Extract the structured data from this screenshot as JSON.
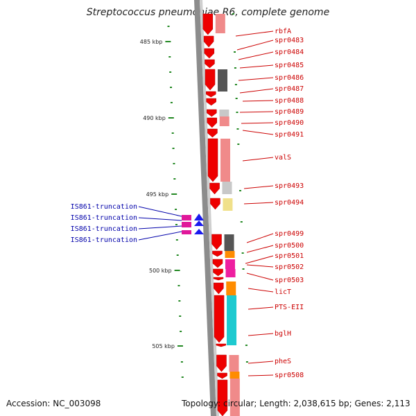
{
  "title": "Streptococcus pneumoniae R6, complete genome",
  "accession": "Accession: NC_003098",
  "topology": "Topology: circular; Length: 2,038,615 bp; Genes: 2,113",
  "scale_labels": [
    "485 kbp",
    "490 kbp",
    "495 kbp",
    "500 kbp",
    "505 kbp"
  ],
  "gene_labels": [
    "rbfA",
    "spr0483",
    "spr0484",
    "spr0485",
    "spr0486",
    "spr0487",
    "spr0488",
    "spr0489",
    "spr0490",
    "spr0491",
    "valS",
    "spr0493",
    "spr0494",
    "spr0499",
    "spr0500",
    "spr0501",
    "spr0502",
    "spr0503",
    "licT",
    "PTS-EII",
    "bglH",
    "pheS",
    "spr0508"
  ],
  "is_labels": [
    "IS861-truncation",
    "IS861-truncation",
    "IS861-truncation",
    "IS861-truncation"
  ],
  "colors": {
    "backbone": "#8c8c8c",
    "gene": "#ee0000",
    "gene_label": "#cc0000",
    "is_label": "#0000aa",
    "tick": "#228822",
    "is_element": "#e0189a",
    "is_arrow": "#1a1aee",
    "cog_pink": "#f08a8a",
    "cog_dark": "#555555",
    "cog_gray": "#c8c8c8",
    "cog_yellow": "#f0e08a",
    "cog_orange": "#ff8c00",
    "cog_cyan": "#1ecad0",
    "cog_magenta": "#ee1fa0"
  }
}
